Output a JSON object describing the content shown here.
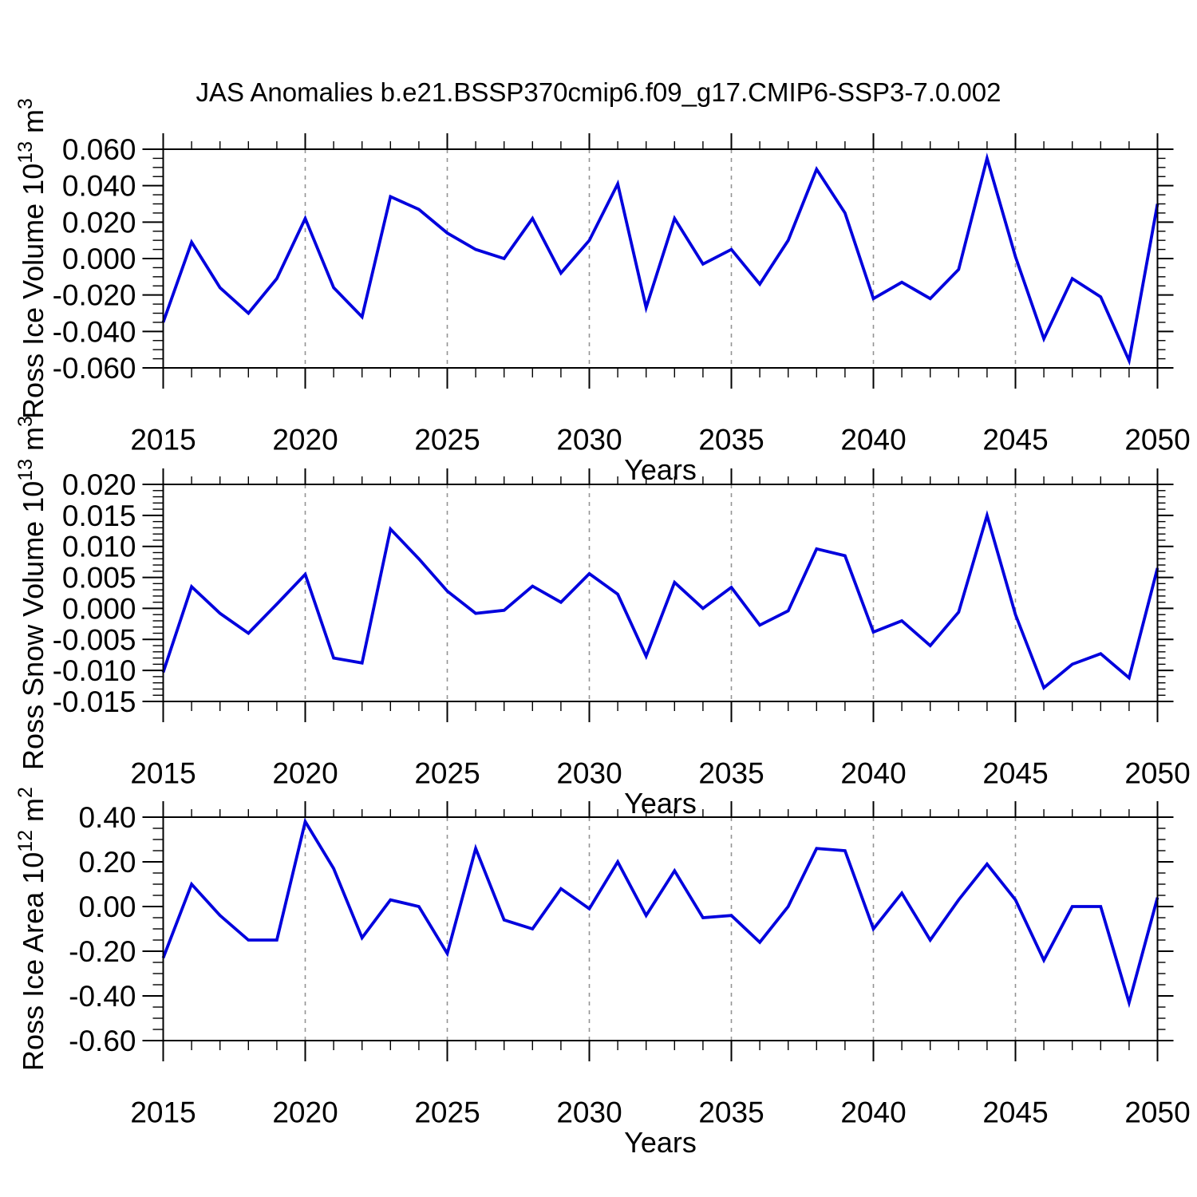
{
  "title": "JAS Anomalies b.e21.BSSP370cmip6.f09_g17.CMIP6-SSP3-7.0.002",
  "accent_color": "#0000dd",
  "grid_color": "#949494",
  "axis_color": "#000000",
  "chart_data": [
    {
      "type": "line",
      "ylabel": "Ross Ice Volume 10^13 m^3",
      "ylabel_parts": [
        {
          "text": "Ross Ice Volume 10"
        },
        {
          "text": "13",
          "sup": true
        },
        {
          "text": " m"
        },
        {
          "text": "3",
          "sup": true
        }
      ],
      "xlabel": "Years",
      "xlim": [
        2015,
        2050
      ],
      "ylim": [
        -0.06,
        0.06
      ],
      "x_major_step": 5,
      "x_minor_step": 1,
      "y_minor_step": 0.005,
      "grid_x": [
        2020,
        2025,
        2030,
        2035,
        2040,
        2045
      ],
      "xticks": [
        2015,
        2020,
        2025,
        2030,
        2035,
        2040,
        2045,
        2050
      ],
      "xtick_labels": [
        "2015",
        "2020",
        "2025",
        "2030",
        "2035",
        "2040",
        "2045",
        "2050"
      ],
      "yticks": [
        0.06,
        0.04,
        0.02,
        0.0,
        -0.02,
        -0.04,
        -0.06
      ],
      "ytick_labels": [
        "0.060",
        "0.040",
        "0.020",
        "0.000",
        "-0.020",
        "-0.040",
        "-0.060"
      ],
      "x": [
        2015,
        2016,
        2017,
        2018,
        2019,
        2020,
        2021,
        2022,
        2023,
        2024,
        2025,
        2026,
        2027,
        2028,
        2029,
        2030,
        2031,
        2032,
        2033,
        2034,
        2035,
        2036,
        2037,
        2038,
        2039,
        2040,
        2041,
        2042,
        2043,
        2044,
        2045,
        2046,
        2047,
        2048,
        2049,
        2050
      ],
      "values": [
        -0.035,
        0.009,
        -0.016,
        -0.03,
        -0.011,
        0.022,
        -0.016,
        -0.032,
        0.034,
        0.027,
        0.014,
        0.005,
        0.0,
        0.022,
        -0.008,
        0.01,
        0.041,
        -0.027,
        0.022,
        -0.003,
        0.005,
        -0.014,
        0.01,
        0.049,
        0.025,
        -0.022,
        -0.013,
        -0.022,
        -0.006,
        0.055,
        0.001,
        -0.044,
        -0.011,
        -0.021,
        -0.056,
        0.03
      ]
    },
    {
      "type": "line",
      "ylabel": "Ross Snow Volume 10^13 m^3",
      "ylabel_parts": [
        {
          "text": "Ross Snow Volume 10"
        },
        {
          "text": "13",
          "sup": true
        },
        {
          "text": " m"
        },
        {
          "text": "3",
          "sup": true
        }
      ],
      "xlabel": "Years",
      "xlim": [
        2015,
        2050
      ],
      "ylim": [
        -0.015,
        0.02
      ],
      "x_major_step": 5,
      "x_minor_step": 1,
      "y_minor_step": 0.001,
      "grid_x": [
        2020,
        2025,
        2030,
        2035,
        2040,
        2045
      ],
      "xticks": [
        2015,
        2020,
        2025,
        2030,
        2035,
        2040,
        2045,
        2050
      ],
      "xtick_labels": [
        "2015",
        "2020",
        "2025",
        "2030",
        "2035",
        "2040",
        "2045",
        "2050"
      ],
      "yticks": [
        0.02,
        0.015,
        0.01,
        0.005,
        0.0,
        -0.005,
        -0.01,
        -0.015
      ],
      "ytick_labels": [
        "0.020",
        "0.015",
        "0.010",
        "0.005",
        "0.000",
        "-0.005",
        "-0.010",
        "-0.015"
      ],
      "x": [
        2015,
        2016,
        2017,
        2018,
        2019,
        2020,
        2021,
        2022,
        2023,
        2024,
        2025,
        2026,
        2027,
        2028,
        2029,
        2030,
        2031,
        2032,
        2033,
        2034,
        2035,
        2036,
        2037,
        2038,
        2039,
        2040,
        2041,
        2042,
        2043,
        2044,
        2045,
        2046,
        2047,
        2048,
        2049,
        2050
      ],
      "values": [
        -0.0103,
        0.0035,
        -0.0008,
        -0.004,
        0.0007,
        0.0055,
        -0.008,
        -0.0088,
        0.0128,
        0.008,
        0.0028,
        -0.0008,
        -0.0003,
        0.0036,
        0.001,
        0.0056,
        0.0023,
        -0.0077,
        0.0042,
        0.0,
        0.0034,
        -0.0027,
        -0.0004,
        0.0096,
        0.0085,
        -0.0038,
        -0.002,
        -0.006,
        -0.0006,
        0.015,
        -0.001,
        -0.0128,
        -0.009,
        -0.0073,
        -0.0112,
        0.0065
      ]
    },
    {
      "type": "line",
      "ylabel": "Ross Ice Area 10^12 m^2",
      "ylabel_parts": [
        {
          "text": "Ross Ice Area 10"
        },
        {
          "text": "12",
          "sup": true
        },
        {
          "text": " m"
        },
        {
          "text": "2",
          "sup": true
        }
      ],
      "xlabel": "Years",
      "xlim": [
        2015,
        2050
      ],
      "ylim": [
        -0.6,
        0.4
      ],
      "x_major_step": 5,
      "x_minor_step": 1,
      "y_minor_step": 0.05,
      "grid_x": [
        2020,
        2025,
        2030,
        2035,
        2040,
        2045
      ],
      "xticks": [
        2015,
        2020,
        2025,
        2030,
        2035,
        2040,
        2045,
        2050
      ],
      "xtick_labels": [
        "2015",
        "2020",
        "2025",
        "2030",
        "2035",
        "2040",
        "2045",
        "2050"
      ],
      "yticks": [
        0.4,
        0.2,
        0.0,
        -0.2,
        -0.4,
        -0.6
      ],
      "ytick_labels": [
        "0.40",
        "0.20",
        "0.00",
        "-0.20",
        "-0.40",
        "-0.60"
      ],
      "x": [
        2015,
        2016,
        2017,
        2018,
        2019,
        2020,
        2021,
        2022,
        2023,
        2024,
        2025,
        2026,
        2027,
        2028,
        2029,
        2030,
        2031,
        2032,
        2033,
        2034,
        2035,
        2036,
        2037,
        2038,
        2039,
        2040,
        2041,
        2042,
        2043,
        2044,
        2045,
        2046,
        2047,
        2048,
        2049,
        2050
      ],
      "values": [
        -0.23,
        0.1,
        -0.04,
        -0.15,
        -0.15,
        0.38,
        0.17,
        -0.14,
        0.03,
        0.0,
        -0.21,
        0.26,
        -0.06,
        -0.1,
        0.08,
        -0.01,
        0.2,
        -0.04,
        0.16,
        -0.05,
        -0.04,
        -0.16,
        0.0,
        0.26,
        0.25,
        -0.1,
        0.06,
        -0.15,
        0.03,
        0.19,
        0.03,
        -0.24,
        0.0,
        0.0,
        -0.43,
        0.04
      ]
    }
  ]
}
